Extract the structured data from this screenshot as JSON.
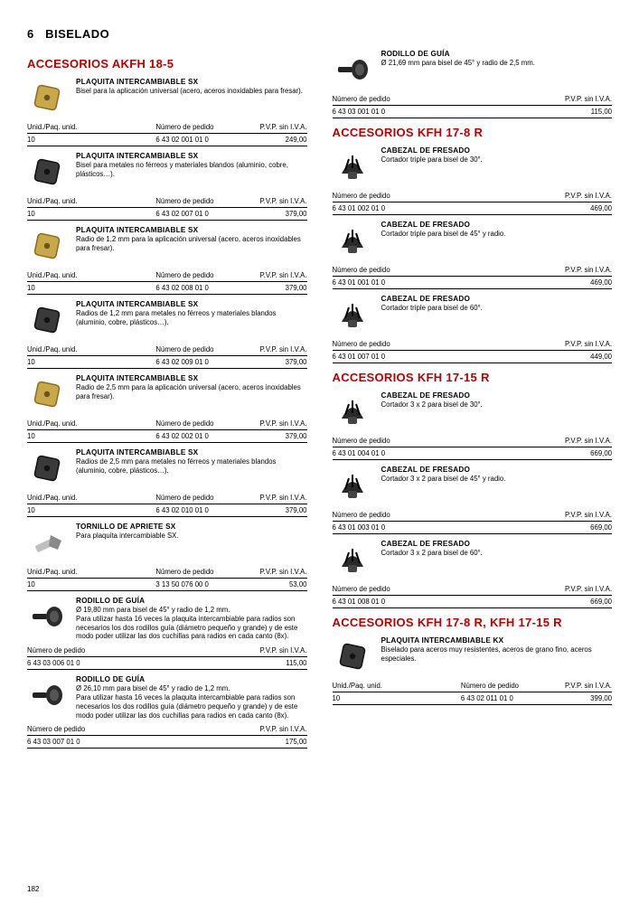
{
  "chapter_num": "6",
  "chapter_title": "BISELADO",
  "page_number": "182",
  "hdr_unid": "Unid./Paq. unid.",
  "hdr_num": "Número de pedido",
  "hdr_price": "P.V.P. sin I.V.A.",
  "sections": {
    "akfh185": {
      "title": "ACCESORIOS AKFH 18-5"
    },
    "kfh178": {
      "title": "ACCESORIOS KFH 17-8 R"
    },
    "kfh1715": {
      "title": "ACCESORIOS KFH 17-15 R"
    },
    "kfh_both": {
      "title": "ACCESORIOS KFH 17-8 R, KFH 17-15 R"
    }
  },
  "left": [
    {
      "title": "PLAQUITA INTERCAMBIABLE SX",
      "desc": "Bisel para la aplicación universal (acero, aceros inoxidables para fresar).",
      "unid": "10",
      "num": "6 43 02 001 01 0",
      "price": "249,00",
      "icon": "insert-gold"
    },
    {
      "title": "PLAQUITA INTERCAMBIABLE SX",
      "desc": "Bisel para metales no férreos y materiales blandos (aluminio, cobre, plásticos…).",
      "unid": "10",
      "num": "6 43 02 007 01 0",
      "price": "379,00",
      "icon": "insert-dark"
    },
    {
      "title": "PLAQUITA INTERCAMBIABLE SX",
      "desc": "Radio de 1,2 mm para la aplicación universal (acero, aceros inoxidables para fresar).",
      "unid": "10",
      "num": "6 43 02 008 01 0",
      "price": "379,00",
      "icon": "insert-gold"
    },
    {
      "title": "PLAQUITA INTERCAMBIABLE SX",
      "desc": "Radios de 1,2 mm para metales no férreos y materiales blandos (aluminio, cobre, plásticos…).",
      "unid": "10",
      "num": "6 43 02 009 01 0",
      "price": "379,00",
      "icon": "insert-dark"
    },
    {
      "title": "PLAQUITA INTERCAMBIABLE SX",
      "desc": "Radio de 2,5 mm para la aplicación universal (acero, aceros inoxidables para fresar).",
      "unid": "10",
      "num": "6 43 02 002 01 0",
      "price": "379,00",
      "icon": "insert-gold"
    },
    {
      "title": "PLAQUITA INTERCAMBIABLE SX",
      "desc": "Radios de 2,5 mm para metales no férreos y materiales blandos (aluminio, cobre, plásticos…).",
      "unid": "10",
      "num": "6 43 02 010 01 0",
      "price": "379,00",
      "icon": "insert-dark"
    },
    {
      "title": "TORNILLO DE APRIETE SX",
      "desc": "Para plaquita intercambiable SX.",
      "unid": "10",
      "num": "3 13 50 076 00 0",
      "price": "53,00",
      "icon": "screw"
    },
    {
      "title": "RODILLO DE GUÍA",
      "desc": "Ø 19,80 mm para bisel de 45° y radio de 1,2 mm.\nPara utilizar hasta 16 veces la plaquita intercambiable para radios son necesarios los dos rodillos guía (diámetro pequeño y grande) y de este modo poder utilizar las dos cuchillas para radios en cada canto (8x).",
      "num": "6 43 03 006 01 0",
      "price": "115,00",
      "icon": "roller",
      "simple": true
    },
    {
      "title": "RODILLO DE GUÍA",
      "desc": "Ø 26,10 mm para bisel de 45° y radio de 1,2 mm.\nPara utilizar hasta 16 veces la plaquita intercambiable para radios son necesarios los dos rodillos guía (diámetro pequeño y grande) y de este modo poder utilizar las dos cuchillas para radios en cada canto (8x).",
      "num": "6 43 03 007 01 0",
      "price": "175,00",
      "icon": "roller",
      "simple": true
    }
  ],
  "right_top": {
    "title": "RODILLO DE GUÍA",
    "desc": "Ø 21,69 mm para bisel de 45° y radio de 2,5 mm.",
    "num": "6 43 03 001 01 0",
    "price": "115,00",
    "icon": "roller"
  },
  "kfh178_items": [
    {
      "title": "CABEZAL DE FRESADO",
      "desc": "Cortador triple para bisel de 30°.",
      "num": "6 43 01 002 01 0",
      "price": "469,00",
      "icon": "cutter"
    },
    {
      "title": "CABEZAL DE FRESADO",
      "desc": "Cortador triple para bisel de 45° y radio.",
      "num": "6 43 01 001 01 0",
      "price": "469,00",
      "icon": "cutter"
    },
    {
      "title": "CABEZAL DE FRESADO",
      "desc": "Cortador triple para bisel de 60°.",
      "num": "6 43 01 007 01 0",
      "price": "449,00",
      "icon": "cutter"
    }
  ],
  "kfh1715_items": [
    {
      "title": "CABEZAL DE FRESADO",
      "desc": "Cortador 3 x 2 para bisel de 30°.",
      "num": "6 43 01 004 01 0",
      "price": "669,00",
      "icon": "cutter"
    },
    {
      "title": "CABEZAL DE FRESADO",
      "desc": "Cortador 3 x 2 para bisel de 45° y radio.",
      "num": "6 43 01 003 01 0",
      "price": "669,00",
      "icon": "cutter"
    },
    {
      "title": "CABEZAL DE FRESADO",
      "desc": "Cortador 3 x 2 para bisel de 60°.",
      "num": "6 43 01 008 01 0",
      "price": "669,00",
      "icon": "cutter"
    }
  ],
  "kfh_both_item": {
    "title": "PLAQUITA INTERCAMBIABLE KX",
    "desc": "Biselado para aceros muy resistentes, aceros de grano fino, aceros especiales.",
    "unid": "10",
    "num": "6 43 02 011 01 0",
    "price": "399,00",
    "icon": "insert-dark"
  }
}
